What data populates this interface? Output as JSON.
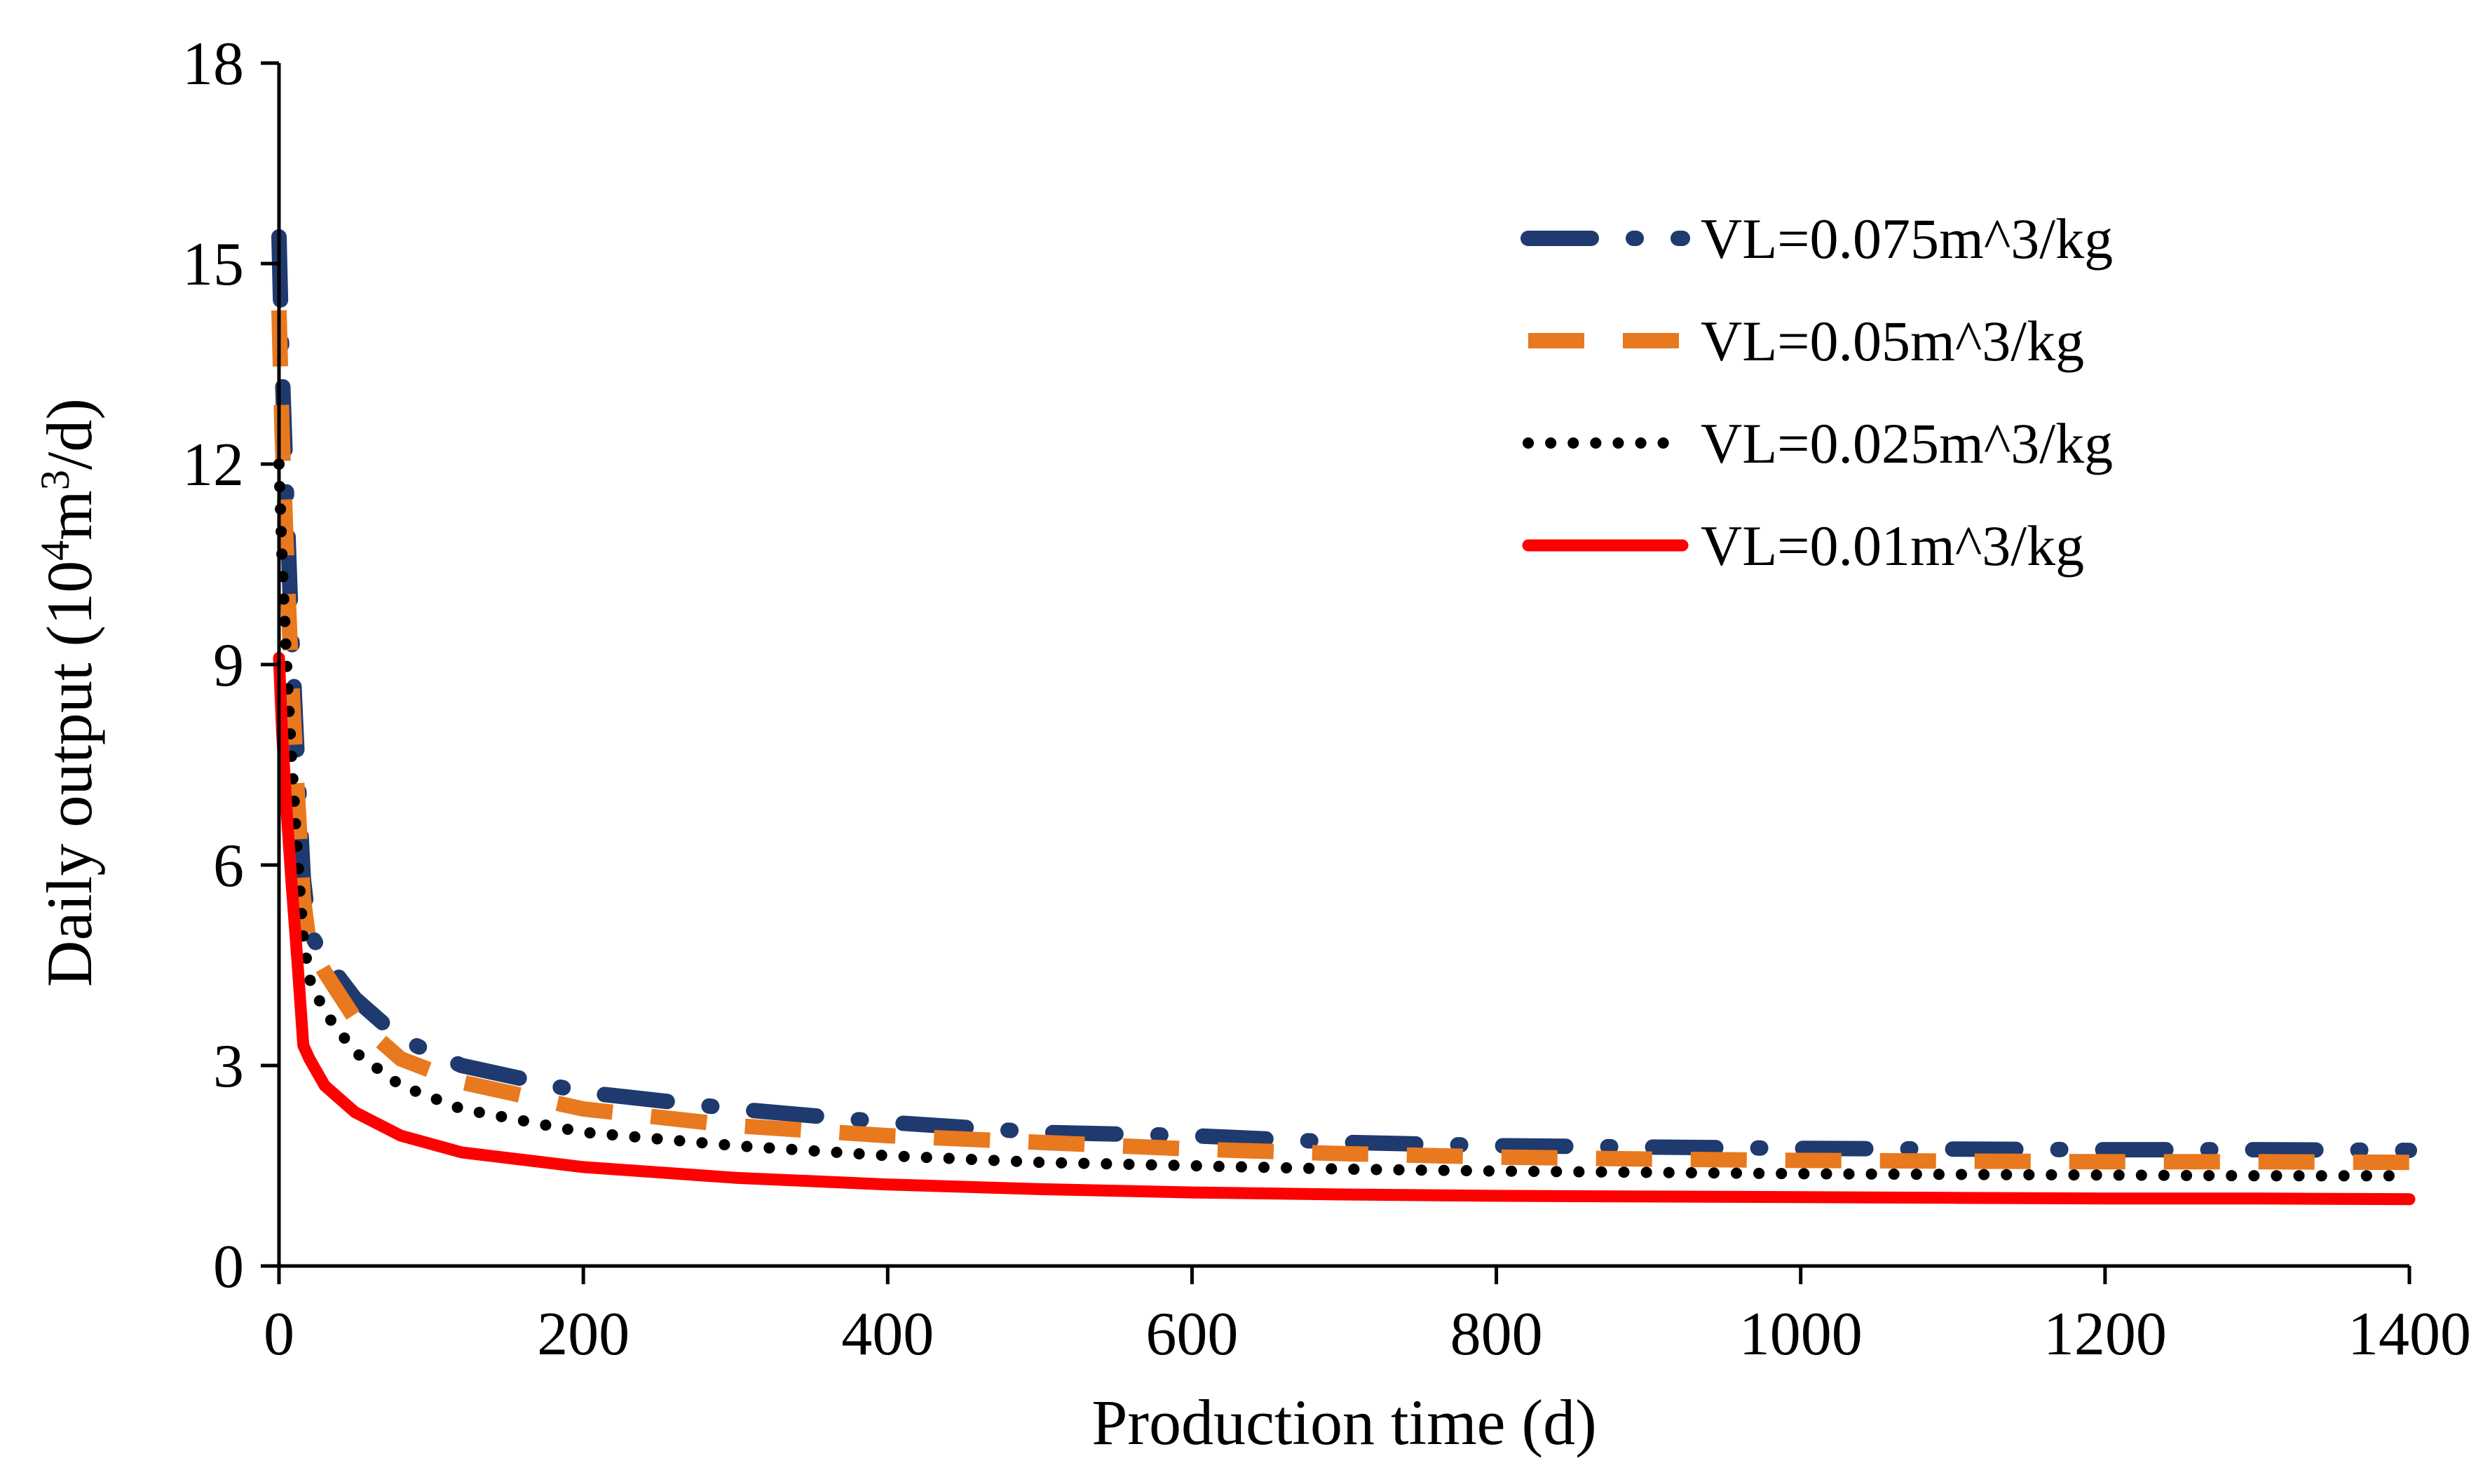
{
  "chart_data": {
    "type": "line",
    "title": "",
    "xlabel": "Production time (d)",
    "ylabel_parts": {
      "prefix": "Daily output (10",
      "exp1": "4",
      "mid": "m",
      "exp2": "3",
      "suffix": "/d)"
    },
    "xlim": [
      0,
      1400
    ],
    "ylim": [
      0,
      18
    ],
    "xticks": [
      0,
      200,
      400,
      600,
      800,
      1000,
      1200,
      1400
    ],
    "yticks": [
      0,
      3,
      6,
      9,
      12,
      15,
      18
    ],
    "grid": false,
    "legend_position": "top-right",
    "series": [
      {
        "name": "VL=0.075m^3/kg",
        "color": "#1f3a6e",
        "style": "dash-dot",
        "x": [
          0,
          2,
          5,
          8,
          12,
          16,
          20,
          30,
          50,
          80,
          120,
          200,
          300,
          400,
          500,
          600,
          700,
          800,
          900,
          1000,
          1100,
          1200,
          1300,
          1400
        ],
        "y": [
          15.4,
          13.5,
          11.5,
          9.6,
          7.6,
          5.8,
          5.0,
          4.6,
          4.0,
          3.4,
          3.0,
          2.6,
          2.35,
          2.15,
          2.0,
          1.95,
          1.85,
          1.8,
          1.78,
          1.76,
          1.75,
          1.74,
          1.74,
          1.73
        ]
      },
      {
        "name": "VL=0.05m^3/kg",
        "color": "#e8791f",
        "style": "dash",
        "x": [
          0,
          2,
          5,
          8,
          12,
          16,
          20,
          30,
          50,
          80,
          120,
          200,
          300,
          400,
          500,
          600,
          700,
          800,
          900,
          1000,
          1100,
          1200,
          1300,
          1400
        ],
        "y": [
          14.3,
          12.5,
          10.6,
          8.9,
          7.1,
          5.5,
          4.8,
          4.4,
          3.7,
          3.1,
          2.75,
          2.35,
          2.1,
          1.95,
          1.85,
          1.75,
          1.68,
          1.63,
          1.6,
          1.58,
          1.57,
          1.56,
          1.56,
          1.55
        ]
      },
      {
        "name": "VL=0.025m^3/kg",
        "color": "#000000",
        "style": "dot",
        "x": [
          0,
          2,
          5,
          8,
          12,
          16,
          20,
          30,
          50,
          80,
          120,
          200,
          300,
          400,
          500,
          600,
          700,
          800,
          900,
          1000,
          1100,
          1200,
          1300,
          1400
        ],
        "y": [
          12.0,
          10.6,
          9.0,
          7.7,
          6.2,
          4.9,
          4.3,
          3.8,
          3.2,
          2.7,
          2.35,
          2.0,
          1.8,
          1.65,
          1.55,
          1.5,
          1.45,
          1.42,
          1.4,
          1.38,
          1.37,
          1.36,
          1.35,
          1.35
        ]
      },
      {
        "name": "VL=0.01m^3/kg",
        "color": "#ff0000",
        "style": "solid",
        "x": [
          0,
          2,
          5,
          8,
          12,
          16,
          20,
          30,
          50,
          80,
          120,
          200,
          300,
          400,
          500,
          600,
          700,
          800,
          900,
          1000,
          1100,
          1200,
          1300,
          1400
        ],
        "y": [
          9.1,
          8.0,
          6.8,
          5.8,
          4.6,
          3.3,
          3.1,
          2.7,
          2.3,
          1.95,
          1.7,
          1.48,
          1.32,
          1.22,
          1.15,
          1.1,
          1.07,
          1.05,
          1.04,
          1.03,
          1.02,
          1.01,
          1.01,
          1.0
        ]
      }
    ]
  }
}
